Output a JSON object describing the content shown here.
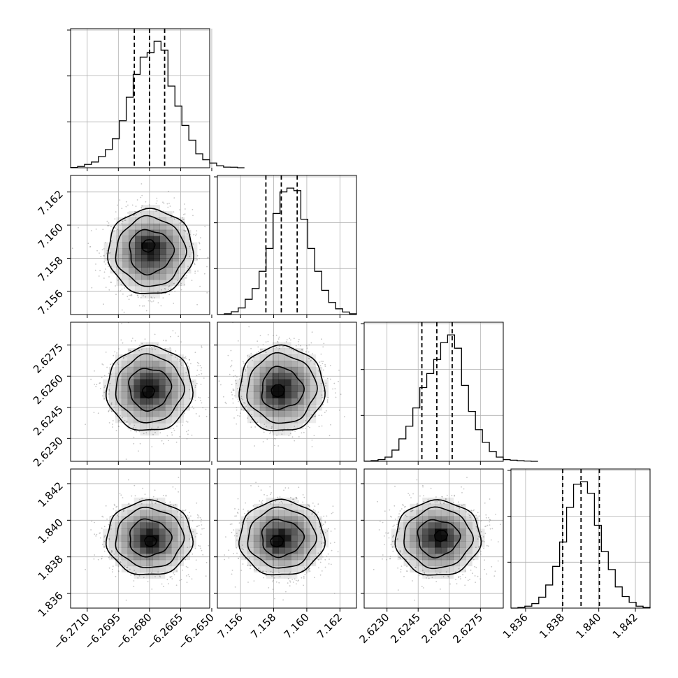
{
  "chart_data": {
    "type": "corner",
    "parameters": [
      {
        "xlim": [
          -6.2718,
          -6.2651
        ],
        "ticks": [
          -6.271,
          -6.2695,
          -6.268,
          -6.2665,
          -6.265
        ],
        "tick_labels": [
          "−6.2710",
          "−6.2695",
          "−6.2680",
          "−6.2665",
          "−6.2650"
        ],
        "quantiles": [
          -6.26873,
          -6.268,
          -6.26727
        ],
        "hist_edges_start": -6.2718,
        "hist_bin_width": 0.000335,
        "hist_counts": [
          0.2,
          1.0,
          2.6,
          4.5,
          8.8,
          14.3,
          22.8,
          37.0,
          55.5,
          73.5,
          87.0,
          90.5,
          99.5,
          92.5,
          64.3,
          48.5,
          33.3,
          21.7,
          11.0,
          6.3,
          3.7,
          1.6,
          0.5,
          0.4,
          0.0
        ]
      },
      {
        "xlim": [
          7.1546,
          7.163
        ],
        "ticks": [
          7.156,
          7.158,
          7.16,
          7.162
        ],
        "tick_labels": [
          "7.156",
          "7.158",
          "7.160",
          "7.162"
        ],
        "quantiles": [
          7.15753,
          7.15846,
          7.15942
        ],
        "hist_edges_start": 7.1546,
        "hist_bin_width": 0.00042,
        "hist_counts": [
          0.0,
          0.6,
          2.2,
          5.2,
          12.0,
          20.5,
          34.0,
          52.0,
          79.5,
          96.5,
          99.5,
          97.5,
          75.0,
          52.0,
          34.0,
          19.0,
          9.5,
          4.5,
          2.0,
          0.6
        ]
      },
      {
        "xlim": [
          2.6219,
          2.6286
        ],
        "ticks": [
          2.623,
          2.6245,
          2.626,
          2.6275
        ],
        "tick_labels": [
          "2.6230",
          "2.6245",
          "2.6260",
          "2.6275"
        ],
        "quantiles": [
          2.62468,
          2.6254,
          2.62614
        ],
        "hist_edges_start": 2.6219,
        "hist_bin_width": 0.000335,
        "hist_counts": [
          0.2,
          0.5,
          1.2,
          3.0,
          8.0,
          16.0,
          25.0,
          38.0,
          52.5,
          62.5,
          72.5,
          84.5,
          90.0,
          80.5,
          54.0,
          35.5,
          22.5,
          13.5,
          7.0,
          3.0,
          1.2,
          0.8,
          0.4,
          0.2,
          0.0
        ]
      },
      {
        "xlim": [
          1.8352,
          1.8428
        ],
        "ticks": [
          1.836,
          1.838,
          1.84,
          1.842
        ],
        "tick_labels": [
          "1.836",
          "1.838",
          "1.840",
          "1.842"
        ],
        "quantiles": [
          1.83803,
          1.83903,
          1.84003
        ],
        "hist_edges_start": 1.8352,
        "hist_bin_width": 0.00038,
        "hist_counts": [
          0.0,
          0.5,
          1.5,
          3.5,
          8.5,
          18.0,
          32.5,
          51.5,
          78.5,
          96.5,
          98.5,
          89.5,
          64.5,
          44.0,
          30.0,
          16.5,
          9.0,
          4.5,
          1.5,
          0.5
        ]
      }
    ],
    "contours": [
      {
        "row": 1,
        "col": 0,
        "center": [
          -6.26795,
          7.1584
        ],
        "mode": [
          -6.26805,
          7.15875
        ],
        "sigma": [
          0.001,
          0.00125
        ],
        "levels": [
          0.3,
          1.05,
          1.65,
          2.05
        ],
        "wobble": [
          [
            0.08,
            2,
            0.4
          ],
          [
            0.4,
            3,
            1.1
          ],
          [
            0.3,
            4,
            0.9
          ],
          [
            0.1,
            3,
            0.2
          ]
        ]
      },
      {
        "row": 2,
        "col": 0,
        "center": [
          -6.268,
          2.6254
        ],
        "mode": [
          -6.26805,
          2.62525
        ],
        "sigma": [
          0.001,
          0.001
        ],
        "levels": [
          0.28,
          1.0,
          1.6,
          2.05
        ],
        "wobble": [
          [
            0.07,
            3,
            0.2
          ],
          [
            0.35,
            3,
            0.5
          ],
          [
            0.28,
            4,
            1.3
          ],
          [
            0.12,
            2,
            0.7
          ]
        ]
      },
      {
        "row": 2,
        "col": 1,
        "center": [
          7.15848,
          2.6254
        ],
        "mode": [
          7.15825,
          2.6253
        ],
        "sigma": [
          0.00125,
          0.001
        ],
        "levels": [
          0.3,
          1.0,
          1.65,
          2.05
        ],
        "wobble": [
          [
            0.07,
            2,
            1.0
          ],
          [
            0.45,
            3,
            2.2
          ],
          [
            0.3,
            4,
            0.6
          ],
          [
            0.1,
            3,
            1.4
          ]
        ]
      },
      {
        "row": 3,
        "col": 0,
        "center": [
          -6.268,
          1.83903
        ],
        "mode": [
          -6.26795,
          1.83885
        ],
        "sigma": [
          0.001,
          0.001
        ],
        "levels": [
          0.28,
          1.0,
          1.62,
          2.05
        ],
        "wobble": [
          [
            0.07,
            3,
            0.9
          ],
          [
            0.33,
            3,
            1.7
          ],
          [
            0.22,
            4,
            0.3
          ],
          [
            0.1,
            2,
            1.2
          ]
        ]
      },
      {
        "row": 3,
        "col": 1,
        "center": [
          7.15848,
          1.83903
        ],
        "mode": [
          7.1582,
          1.83885
        ],
        "sigma": [
          0.00125,
          0.001
        ],
        "levels": [
          0.3,
          1.0,
          1.62,
          2.05
        ],
        "wobble": [
          [
            0.07,
            2,
            0.4
          ],
          [
            0.38,
            3,
            1.3
          ],
          [
            0.22,
            4,
            0.8
          ],
          [
            0.1,
            3,
            2.0
          ]
        ]
      },
      {
        "row": 3,
        "col": 2,
        "center": [
          2.62545,
          1.83903
        ],
        "mode": [
          2.6256,
          1.83915
        ],
        "sigma": [
          0.001,
          0.001
        ],
        "levels": [
          0.3,
          1.0,
          1.62,
          2.05
        ],
        "wobble": [
          [
            0.09,
            2,
            0.2
          ],
          [
            0.4,
            3,
            0.9
          ],
          [
            0.24,
            4,
            1.6
          ],
          [
            0.1,
            3,
            0.5
          ]
        ]
      }
    ],
    "grid": true,
    "colors": {
      "line": "#000000",
      "grid": "#b0b0b0",
      "density": "#000000",
      "scatter": "#808080"
    },
    "title": "",
    "xlabel": "",
    "ylabel": ""
  }
}
